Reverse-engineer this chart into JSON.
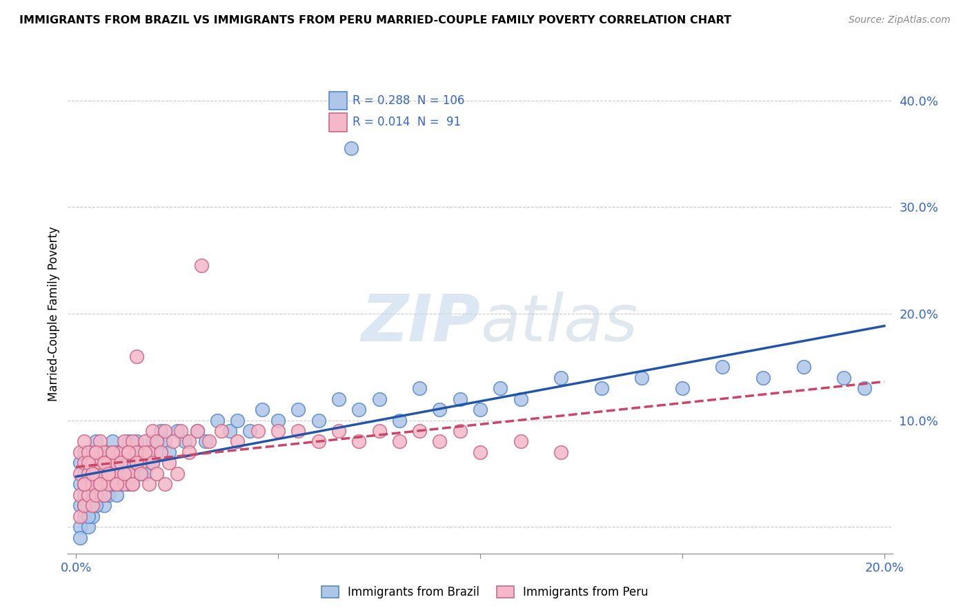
{
  "title": "IMMIGRANTS FROM BRAZIL VS IMMIGRANTS FROM PERU MARRIED-COUPLE FAMILY POVERTY CORRELATION CHART",
  "source": "Source: ZipAtlas.com",
  "ylabel": "Married-Couple Family Poverty",
  "brazil_R": 0.288,
  "brazil_N": 106,
  "peru_R": 0.014,
  "peru_N": 91,
  "brazil_color": "#AEC6E8",
  "brazil_edge_color": "#5588CC",
  "peru_color": "#F4B8C8",
  "peru_edge_color": "#CC6688",
  "brazil_line_color": "#2255AA",
  "peru_line_color": "#CC4466",
  "watermark_zip": "ZIP",
  "watermark_atlas": "atlas",
  "xlim": [
    -0.002,
    0.202
  ],
  "ylim": [
    -0.025,
    0.425
  ],
  "ytick_vals": [
    0.0,
    0.1,
    0.2,
    0.3,
    0.4
  ],
  "ytick_labels": [
    "",
    "10.0%",
    "20.0%",
    "30.0%",
    "40.0%"
  ],
  "xtick_vals": [
    0.0,
    0.05,
    0.1,
    0.15,
    0.2
  ],
  "xtick_labels": [
    "0.0%",
    "",
    "",
    "",
    "20.0%"
  ],
  "legend_brazil_text": "R = 0.288  N = 106",
  "legend_peru_text": "R = 0.014  N =  91",
  "bottom_legend_brazil": "Immigrants from Brazil",
  "bottom_legend_peru": "Immigrants from Peru",
  "brazil_x": [
    0.001,
    0.001,
    0.001,
    0.001,
    0.001,
    0.002,
    0.002,
    0.002,
    0.002,
    0.002,
    0.003,
    0.003,
    0.003,
    0.003,
    0.004,
    0.004,
    0.004,
    0.004,
    0.005,
    0.005,
    0.005,
    0.005,
    0.006,
    0.006,
    0.006,
    0.007,
    0.007,
    0.007,
    0.008,
    0.008,
    0.008,
    0.009,
    0.009,
    0.009,
    0.01,
    0.01,
    0.01,
    0.011,
    0.011,
    0.012,
    0.012,
    0.013,
    0.013,
    0.014,
    0.014,
    0.015,
    0.015,
    0.016,
    0.017,
    0.018,
    0.019,
    0.02,
    0.021,
    0.022,
    0.023,
    0.025,
    0.027,
    0.03,
    0.032,
    0.035,
    0.038,
    0.04,
    0.043,
    0.046,
    0.05,
    0.055,
    0.06,
    0.065,
    0.07,
    0.075,
    0.08,
    0.085,
    0.09,
    0.095,
    0.1,
    0.105,
    0.11,
    0.12,
    0.13,
    0.14,
    0.15,
    0.16,
    0.17,
    0.18,
    0.19,
    0.195,
    0.002,
    0.003,
    0.004,
    0.005,
    0.006,
    0.007,
    0.008,
    0.009,
    0.01,
    0.011,
    0.012,
    0.013,
    0.014,
    0.015,
    0.016,
    0.017,
    0.018,
    0.019,
    0.02,
    0.068
  ],
  "brazil_y": [
    0.02,
    0.04,
    0.06,
    0.0,
    -0.01,
    0.03,
    0.05,
    0.02,
    0.07,
    0.01,
    0.04,
    0.02,
    0.06,
    0.0,
    0.05,
    0.03,
    0.07,
    0.01,
    0.04,
    0.06,
    0.02,
    0.08,
    0.05,
    0.03,
    0.07,
    0.04,
    0.06,
    0.02,
    0.05,
    0.07,
    0.03,
    0.06,
    0.04,
    0.08,
    0.05,
    0.07,
    0.03,
    0.06,
    0.04,
    0.07,
    0.05,
    0.08,
    0.04,
    0.07,
    0.05,
    0.06,
    0.08,
    0.05,
    0.07,
    0.06,
    0.08,
    0.07,
    0.09,
    0.08,
    0.07,
    0.09,
    0.08,
    0.09,
    0.08,
    0.1,
    0.09,
    0.1,
    0.09,
    0.11,
    0.1,
    0.11,
    0.1,
    0.12,
    0.11,
    0.12,
    0.1,
    0.13,
    0.11,
    0.12,
    0.11,
    0.13,
    0.12,
    0.14,
    0.13,
    0.14,
    0.13,
    0.15,
    0.14,
    0.15,
    0.14,
    0.13,
    0.02,
    0.01,
    0.03,
    0.02,
    0.04,
    0.03,
    0.05,
    0.04,
    0.06,
    0.05,
    0.04,
    0.06,
    0.05,
    0.07,
    0.06,
    0.05,
    0.07,
    0.06,
    0.08,
    0.355
  ],
  "peru_x": [
    0.001,
    0.001,
    0.001,
    0.001,
    0.002,
    0.002,
    0.002,
    0.002,
    0.003,
    0.003,
    0.003,
    0.004,
    0.004,
    0.004,
    0.005,
    0.005,
    0.005,
    0.006,
    0.006,
    0.006,
    0.007,
    0.007,
    0.007,
    0.008,
    0.008,
    0.009,
    0.009,
    0.01,
    0.01,
    0.011,
    0.011,
    0.012,
    0.012,
    0.013,
    0.013,
    0.014,
    0.014,
    0.015,
    0.015,
    0.016,
    0.017,
    0.018,
    0.019,
    0.02,
    0.022,
    0.024,
    0.026,
    0.028,
    0.03,
    0.033,
    0.036,
    0.04,
    0.045,
    0.05,
    0.055,
    0.06,
    0.065,
    0.07,
    0.075,
    0.08,
    0.085,
    0.09,
    0.095,
    0.1,
    0.11,
    0.12,
    0.002,
    0.003,
    0.004,
    0.005,
    0.006,
    0.007,
    0.008,
    0.009,
    0.01,
    0.011,
    0.012,
    0.013,
    0.014,
    0.015,
    0.016,
    0.017,
    0.018,
    0.019,
    0.02,
    0.021,
    0.022,
    0.023,
    0.025,
    0.028,
    0.031
  ],
  "peru_y": [
    0.05,
    0.03,
    0.07,
    0.01,
    0.04,
    0.06,
    0.02,
    0.08,
    0.05,
    0.03,
    0.07,
    0.04,
    0.06,
    0.02,
    0.05,
    0.07,
    0.03,
    0.06,
    0.04,
    0.08,
    0.05,
    0.07,
    0.03,
    0.06,
    0.04,
    0.07,
    0.05,
    0.06,
    0.04,
    0.07,
    0.05,
    0.08,
    0.04,
    0.07,
    0.05,
    0.08,
    0.04,
    0.07,
    0.16,
    0.06,
    0.08,
    0.07,
    0.09,
    0.08,
    0.09,
    0.08,
    0.09,
    0.08,
    0.09,
    0.08,
    0.09,
    0.08,
    0.09,
    0.09,
    0.09,
    0.08,
    0.09,
    0.08,
    0.09,
    0.08,
    0.09,
    0.08,
    0.09,
    0.07,
    0.08,
    0.07,
    0.04,
    0.06,
    0.05,
    0.07,
    0.04,
    0.06,
    0.05,
    0.07,
    0.04,
    0.06,
    0.05,
    0.07,
    0.04,
    0.06,
    0.05,
    0.07,
    0.04,
    0.06,
    0.05,
    0.07,
    0.04,
    0.06,
    0.05,
    0.07,
    0.245
  ]
}
